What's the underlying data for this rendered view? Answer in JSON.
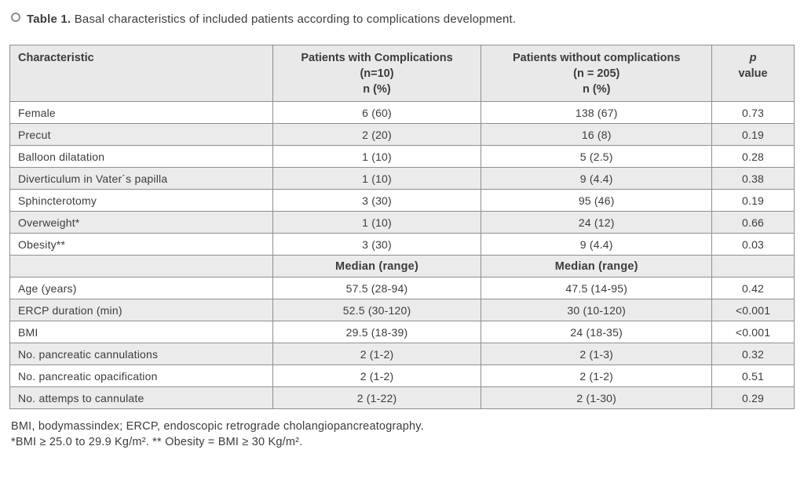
{
  "title": {
    "label": "Table 1.",
    "caption": " Basal characteristics of included patients according to complications development."
  },
  "table": {
    "header": [
      {
        "lines": [
          "Characteristic"
        ]
      },
      {
        "lines": [
          "Patients with Complications",
          "(n=10)",
          "n (%)"
        ]
      },
      {
        "lines": [
          "Patients without complications",
          "(n = 205)",
          "n (%)"
        ]
      },
      {
        "lines": [
          "p",
          "value"
        ]
      }
    ],
    "rows": [
      {
        "type": "data",
        "cells": [
          "Female",
          "6 (60)",
          "138 (67)",
          "0.73"
        ]
      },
      {
        "type": "data",
        "cells": [
          "Precut",
          "2 (20)",
          "16 (8)",
          "0.19"
        ]
      },
      {
        "type": "data",
        "cells": [
          "Balloon dilatation",
          "1 (10)",
          "5 (2.5)",
          "0.28"
        ]
      },
      {
        "type": "data",
        "cells": [
          "Diverticulum in Vater´s papilla",
          "1 (10)",
          "9 (4.4)",
          "0.38"
        ]
      },
      {
        "type": "data",
        "cells": [
          "Sphincterotomy",
          "3 (30)",
          "95 (46)",
          "0.19"
        ]
      },
      {
        "type": "data",
        "cells": [
          "Overweight*",
          "1 (10)",
          "24 (12)",
          "0.66"
        ]
      },
      {
        "type": "data",
        "cells": [
          "Obesity**",
          "3 (30)",
          "9 (4.4)",
          "0.03"
        ]
      },
      {
        "type": "subheader",
        "cells": [
          "",
          "Median (range)",
          "Median (range)",
          ""
        ]
      },
      {
        "type": "data",
        "cells": [
          "Age (years)",
          "57.5 (28-94)",
          "47.5 (14-95)",
          "0.42"
        ]
      },
      {
        "type": "data",
        "cells": [
          "ERCP duration (min)",
          "52.5 (30-120)",
          "30 (10-120)",
          "<0.001"
        ]
      },
      {
        "type": "data",
        "cells": [
          "BMI",
          "29.5 (18-39)",
          "24 (18-35)",
          "<0.001"
        ]
      },
      {
        "type": "data",
        "cells": [
          "No. pancreatic cannulations",
          "2 (1-2)",
          "2 (1-3)",
          "0.32"
        ]
      },
      {
        "type": "data",
        "cells": [
          "No. pancreatic opacification",
          "2 (1-2)",
          "2 (1-2)",
          "0.51"
        ]
      },
      {
        "type": "data",
        "cells": [
          "No. attemps to cannulate",
          "2 (1-22)",
          "2 (1-30)",
          "0.29"
        ]
      }
    ]
  },
  "footnotes": [
    "BMI, bodymassindex; ERCP, endoscopic retrograde cholangiopancreatography.",
    "*BMI ≥ 25.0 to 29.9 Kg/m². ** Obesity = BMI ≥ 30 Kg/m²."
  ],
  "colors": {
    "stripe": "#ebebeb",
    "header_bg": "#e9e9e9",
    "border": "#8f8f8f",
    "text": "#3c3c3c"
  }
}
